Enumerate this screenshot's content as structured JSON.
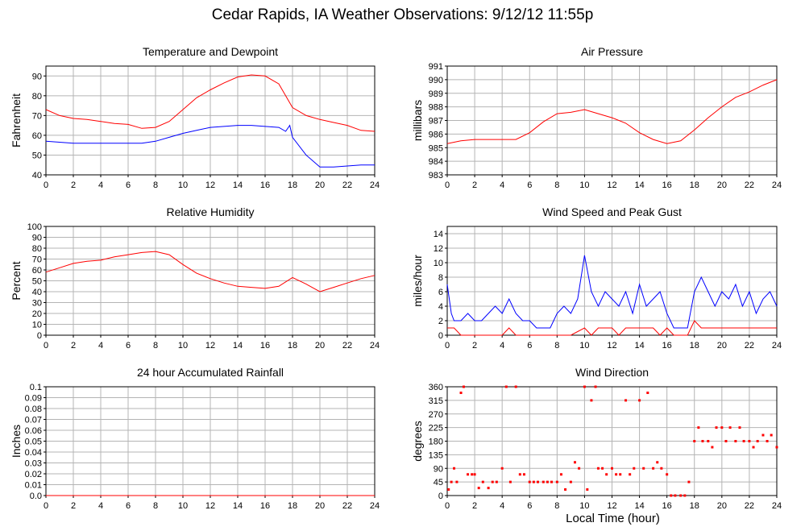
{
  "page": {
    "title": "Cedar Rapids, IA Weather Observations: 9/12/12 11:55p",
    "x_axis_title": "Local Time (hour)"
  },
  "colors": {
    "red": "#ff0000",
    "blue": "#0000ff",
    "grid": "#b4b4b4",
    "frame": "#000000"
  },
  "chart_data": [
    {
      "id": "temperature",
      "type": "line",
      "title": "Temperature and Dewpoint",
      "ylabel": "Fahrenheit",
      "xlim": [
        0,
        24
      ],
      "ylim": [
        40,
        95
      ],
      "xticks": [
        0,
        2,
        4,
        6,
        8,
        10,
        12,
        14,
        16,
        18,
        20,
        22,
        24
      ],
      "yticks": [
        40,
        50,
        60,
        70,
        80,
        90
      ],
      "grid": true,
      "series": [
        {
          "color": "#ff0000",
          "x": [
            0,
            1,
            2,
            3,
            4,
            5,
            6,
            7,
            8,
            9,
            10,
            11,
            12,
            13,
            14,
            15,
            16,
            17,
            18,
            19,
            20,
            21,
            22,
            23,
            24
          ],
          "y": [
            73,
            70,
            68.5,
            68,
            67,
            66,
            65.5,
            63.5,
            64,
            67,
            73,
            79,
            83,
            86.5,
            89.5,
            90.5,
            90,
            86,
            74,
            70,
            68,
            66.5,
            65,
            62.5,
            62
          ]
        },
        {
          "color": "#0000ff",
          "x": [
            0,
            1,
            2,
            3,
            4,
            5,
            6,
            7,
            8,
            9,
            10,
            11,
            12,
            13,
            14,
            15,
            16,
            17,
            17.5,
            17.8,
            18,
            19,
            20,
            21,
            22,
            23,
            24
          ],
          "y": [
            57,
            56.5,
            56,
            56,
            56,
            56,
            56,
            56,
            57,
            59,
            61,
            62.5,
            64,
            64.5,
            65,
            65,
            64.5,
            64,
            62,
            65,
            59,
            50,
            44,
            44,
            44.5,
            45,
            45
          ]
        }
      ]
    },
    {
      "id": "pressure",
      "type": "line",
      "title": "Air Pressure",
      "ylabel": "millibars",
      "xlim": [
        0,
        24
      ],
      "ylim": [
        983,
        991
      ],
      "xticks": [
        0,
        2,
        4,
        6,
        8,
        10,
        12,
        14,
        16,
        18,
        20,
        22,
        24
      ],
      "yticks": [
        983,
        984,
        985,
        986,
        987,
        988,
        989,
        990,
        991
      ],
      "grid": true,
      "series": [
        {
          "color": "#ff0000",
          "x": [
            0,
            1,
            2,
            3,
            4,
            5,
            6,
            7,
            8,
            9,
            10,
            11,
            12,
            13,
            14,
            15,
            16,
            17,
            18,
            19,
            20,
            21,
            22,
            23,
            24
          ],
          "y": [
            985.3,
            985.5,
            985.6,
            985.6,
            985.6,
            985.6,
            986.1,
            986.9,
            987.5,
            987.6,
            987.8,
            987.5,
            987.2,
            986.8,
            986.1,
            985.6,
            985.3,
            985.5,
            986.3,
            987.2,
            988,
            988.7,
            989.1,
            989.6,
            990
          ]
        }
      ]
    },
    {
      "id": "humidity",
      "type": "line",
      "title": "Relative Humidity",
      "ylabel": "Percent",
      "xlim": [
        0,
        24
      ],
      "ylim": [
        0,
        100
      ],
      "xticks": [
        0,
        2,
        4,
        6,
        8,
        10,
        12,
        14,
        16,
        18,
        20,
        22,
        24
      ],
      "yticks": [
        0,
        10,
        20,
        30,
        40,
        50,
        60,
        70,
        80,
        90,
        100
      ],
      "grid": true,
      "series": [
        {
          "color": "#ff0000",
          "x": [
            0,
            1,
            2,
            3,
            4,
            5,
            6,
            7,
            8,
            9,
            10,
            11,
            12,
            13,
            14,
            15,
            16,
            17,
            18,
            19,
            20,
            21,
            22,
            23,
            24
          ],
          "y": [
            58,
            62,
            66,
            68,
            69,
            72,
            74,
            76,
            77,
            74,
            65,
            57,
            52,
            48,
            45,
            44,
            43,
            45,
            53,
            47,
            40,
            44,
            48,
            52,
            55
          ]
        }
      ]
    },
    {
      "id": "wind_speed",
      "type": "line",
      "title": "Wind Speed and Peak Gust",
      "ylabel": "miles/hour",
      "xlim": [
        0,
        24
      ],
      "ylim": [
        0,
        15
      ],
      "xticks": [
        0,
        2,
        4,
        6,
        8,
        10,
        12,
        14,
        16,
        18,
        20,
        22,
        24
      ],
      "yticks": [
        0,
        2,
        4,
        6,
        8,
        10,
        12,
        14
      ],
      "grid": true,
      "series": [
        {
          "color": "#0000ff",
          "x": [
            0,
            0.3,
            0.5,
            1,
            1.5,
            2,
            2.5,
            3,
            3.5,
            4,
            4.5,
            5,
            5.5,
            6,
            6.5,
            7,
            7.5,
            8,
            8.5,
            9,
            9.5,
            10,
            10.5,
            11,
            11.5,
            12,
            12.5,
            13,
            13.5,
            14,
            14.5,
            15,
            15.5,
            16,
            16.5,
            17,
            17.5,
            18,
            18.5,
            19,
            19.5,
            20,
            20.5,
            21,
            21.5,
            22,
            22.5,
            23,
            23.5,
            24
          ],
          "y": [
            7,
            3,
            2,
            2,
            3,
            2,
            2,
            3,
            4,
            3,
            5,
            3,
            2,
            2,
            1,
            1,
            1,
            3,
            4,
            3,
            5,
            11,
            6,
            4,
            6,
            5,
            4,
            6,
            3,
            7,
            4,
            5,
            6,
            3,
            1,
            1,
            1,
            6,
            8,
            6,
            4,
            6,
            5,
            7,
            4,
            6,
            3,
            5,
            6,
            4
          ]
        },
        {
          "color": "#ff0000",
          "x": [
            0,
            0.5,
            1,
            2,
            3,
            4,
            4.5,
            5,
            6,
            7,
            8,
            9,
            10,
            10.5,
            11,
            12,
            12.5,
            13,
            14,
            15,
            15.5,
            16,
            16.5,
            17,
            17.5,
            18,
            18.5,
            19,
            20,
            21,
            22,
            23,
            24
          ],
          "y": [
            1,
            1,
            0,
            0,
            0,
            0,
            1,
            0,
            0,
            0,
            0,
            0,
            1,
            0,
            1,
            1,
            0,
            1,
            1,
            1,
            0,
            1,
            0,
            0,
            0,
            2,
            1,
            1,
            1,
            1,
            1,
            1,
            1
          ]
        }
      ]
    },
    {
      "id": "rainfall",
      "type": "line",
      "title": "24 hour Accumulated Rainfall",
      "ylabel": "Inches",
      "xlim": [
        0,
        24
      ],
      "ylim": [
        0,
        0.1
      ],
      "xticks": [
        0,
        2,
        4,
        6,
        8,
        10,
        12,
        14,
        16,
        18,
        20,
        22,
        24
      ],
      "yticks": [
        0.0,
        0.01,
        0.02,
        0.03,
        0.04,
        0.05,
        0.06,
        0.07,
        0.08,
        0.09,
        0.1
      ],
      "ytick_labels": [
        "0.0",
        "0.01",
        "0.02",
        "0.03",
        "0.04",
        "0.05",
        "0.06",
        "0.07",
        "0.08",
        "0.09",
        "0.1"
      ],
      "grid": true,
      "series": [
        {
          "color": "#ff0000",
          "x": [
            0,
            24
          ],
          "y": [
            0,
            0
          ]
        }
      ]
    },
    {
      "id": "wind_direction",
      "type": "scatter",
      "title": "Wind Direction",
      "ylabel": "degrees",
      "xlim": [
        0,
        24
      ],
      "ylim": [
        0,
        360
      ],
      "xticks": [
        0,
        2,
        4,
        6,
        8,
        10,
        12,
        14,
        16,
        18,
        20,
        22,
        24
      ],
      "yticks": [
        0,
        45,
        90,
        135,
        180,
        225,
        270,
        315,
        360
      ],
      "grid": true,
      "series": [
        {
          "color": "#ff0000",
          "x": [
            0.1,
            0.3,
            0.5,
            0.7,
            1.0,
            1.2,
            1.5,
            1.8,
            2.0,
            2.3,
            2.6,
            3.0,
            3.3,
            3.6,
            4.0,
            4.3,
            4.6,
            5.0,
            5.3,
            5.6,
            6.0,
            6.3,
            6.6,
            7.0,
            7.3,
            7.6,
            8.0,
            8.3,
            8.6,
            9.0,
            9.3,
            9.6,
            10.0,
            10.2,
            10.5,
            10.8,
            11.0,
            11.3,
            11.6,
            12.0,
            12.3,
            12.6,
            13.0,
            13.3,
            13.6,
            14.0,
            14.3,
            14.6,
            15.0,
            15.3,
            15.6,
            16.0,
            16.3,
            16.6,
            17.0,
            17.3,
            17.6,
            18.0,
            18.3,
            18.6,
            19.0,
            19.3,
            19.6,
            20.0,
            20.3,
            20.6,
            21.0,
            21.3,
            21.6,
            22.0,
            22.3,
            22.6,
            23.0,
            23.3,
            23.6,
            24.0
          ],
          "y": [
            20,
            45,
            90,
            45,
            340,
            360,
            70,
            70,
            70,
            25,
            45,
            25,
            45,
            45,
            90,
            360,
            45,
            360,
            70,
            70,
            45,
            45,
            45,
            45,
            45,
            45,
            45,
            70,
            20,
            45,
            110,
            90,
            360,
            20,
            315,
            360,
            90,
            90,
            70,
            90,
            70,
            70,
            315,
            70,
            90,
            315,
            90,
            340,
            90,
            110,
            90,
            70,
            0,
            0,
            0,
            0,
            45,
            180,
            225,
            180,
            180,
            160,
            225,
            225,
            180,
            225,
            180,
            225,
            180,
            180,
            160,
            180,
            200,
            180,
            200,
            160
          ]
        }
      ]
    }
  ]
}
